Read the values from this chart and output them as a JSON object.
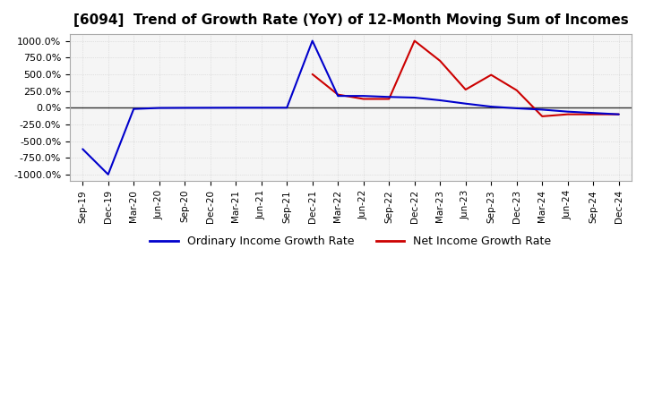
{
  "title": "[6094]  Trend of Growth Rate (YoY) of 12-Month Moving Sum of Incomes",
  "title_fontsize": 11,
  "background_color": "#ffffff",
  "plot_background": "#f5f5f5",
  "grid_color": "#cccccc",
  "ylim": [
    -1100,
    1100
  ],
  "yticks": [
    -1000,
    -750,
    -500,
    -250,
    0,
    250,
    500,
    750,
    1000
  ],
  "ytick_labels": [
    "-1000.0%",
    "-750.0%",
    "-500.0%",
    "-250.0%",
    "0.0%",
    "250.0%",
    "500.0%",
    "750.0%",
    "1000.0%"
  ],
  "ordinary_income_color": "#0000cc",
  "net_income_color": "#cc0000",
  "legend_ordinary": "Ordinary Income Growth Rate",
  "legend_net": "Net Income Growth Rate",
  "xtick_labels": [
    "Sep-19",
    "Dec-19",
    "Mar-20",
    "Jun-20",
    "Sep-20",
    "Dec-20",
    "Mar-21",
    "Jun-21",
    "Sep-21",
    "Dec-21",
    "Mar-22",
    "Jun-22",
    "Sep-22",
    "Dec-22",
    "Mar-23",
    "Jun-23",
    "Sep-23",
    "Dec-23",
    "Mar-24",
    "Jun-24",
    "Sep-24",
    "Dec-24"
  ],
  "ordinary_income_growth": [
    -620,
    -1000,
    -20,
    -5,
    -3,
    -2,
    -1,
    -1,
    -1,
    1000,
    175,
    175,
    160,
    150,
    110,
    60,
    15,
    -10,
    -30,
    -60,
    -80,
    -100
  ],
  "net_income_growth": [
    null,
    null,
    null,
    null,
    null,
    null,
    null,
    null,
    null,
    500,
    195,
    130,
    130,
    1000,
    700,
    270,
    490,
    260,
    -130,
    -100,
    -100,
    -100
  ]
}
